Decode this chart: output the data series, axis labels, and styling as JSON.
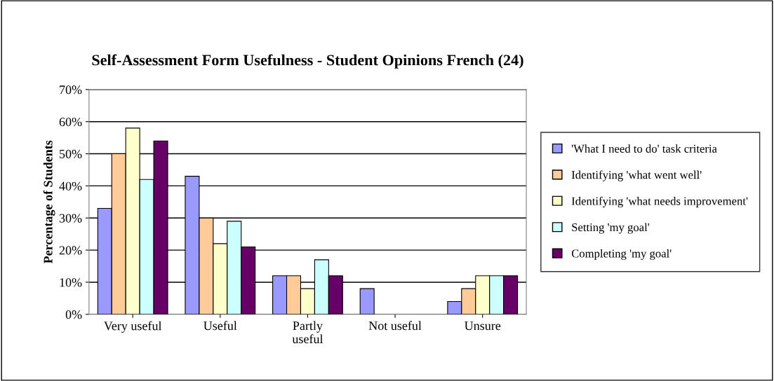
{
  "chart_data": {
    "type": "bar",
    "title": "Self-Assessment Form Usefulness - Student Opinions French (24)",
    "ylabel": "Percentage of Students",
    "categories": [
      "Very useful",
      "Useful",
      "Partly\nuseful",
      "Not useful",
      "Unsure"
    ],
    "series": [
      {
        "name": "'What I need to do' task criteria",
        "color": "#9999ff",
        "values": [
          33,
          43,
          12,
          8,
          4
        ]
      },
      {
        "name": "Identifying 'what went well'",
        "color": "#ffcc99",
        "values": [
          50,
          30,
          12,
          null,
          8
        ]
      },
      {
        "name": "Identifying 'what needs improvement'",
        "color": "#ffffcc",
        "values": [
          58,
          22,
          8,
          null,
          12
        ]
      },
      {
        "name": "Setting 'my goal'",
        "color": "#ccffff",
        "values": [
          42,
          29,
          17,
          null,
          12
        ]
      },
      {
        "name": "Completing 'my goal'",
        "color": "#660066",
        "values": [
          54,
          21,
          12,
          null,
          12
        ]
      }
    ],
    "ylim": [
      0,
      70
    ],
    "yticks": [
      {
        "value": 0,
        "label": "0%"
      },
      {
        "value": 10,
        "label": "10%"
      },
      {
        "value": 20,
        "label": "20%"
      },
      {
        "value": 30,
        "label": "30%"
      },
      {
        "value": 40,
        "label": "40%"
      },
      {
        "value": 50,
        "label": "50%"
      },
      {
        "value": 60,
        "label": "60%"
      },
      {
        "value": 70,
        "label": "70%"
      }
    ],
    "grid": "y",
    "legend": "right"
  }
}
